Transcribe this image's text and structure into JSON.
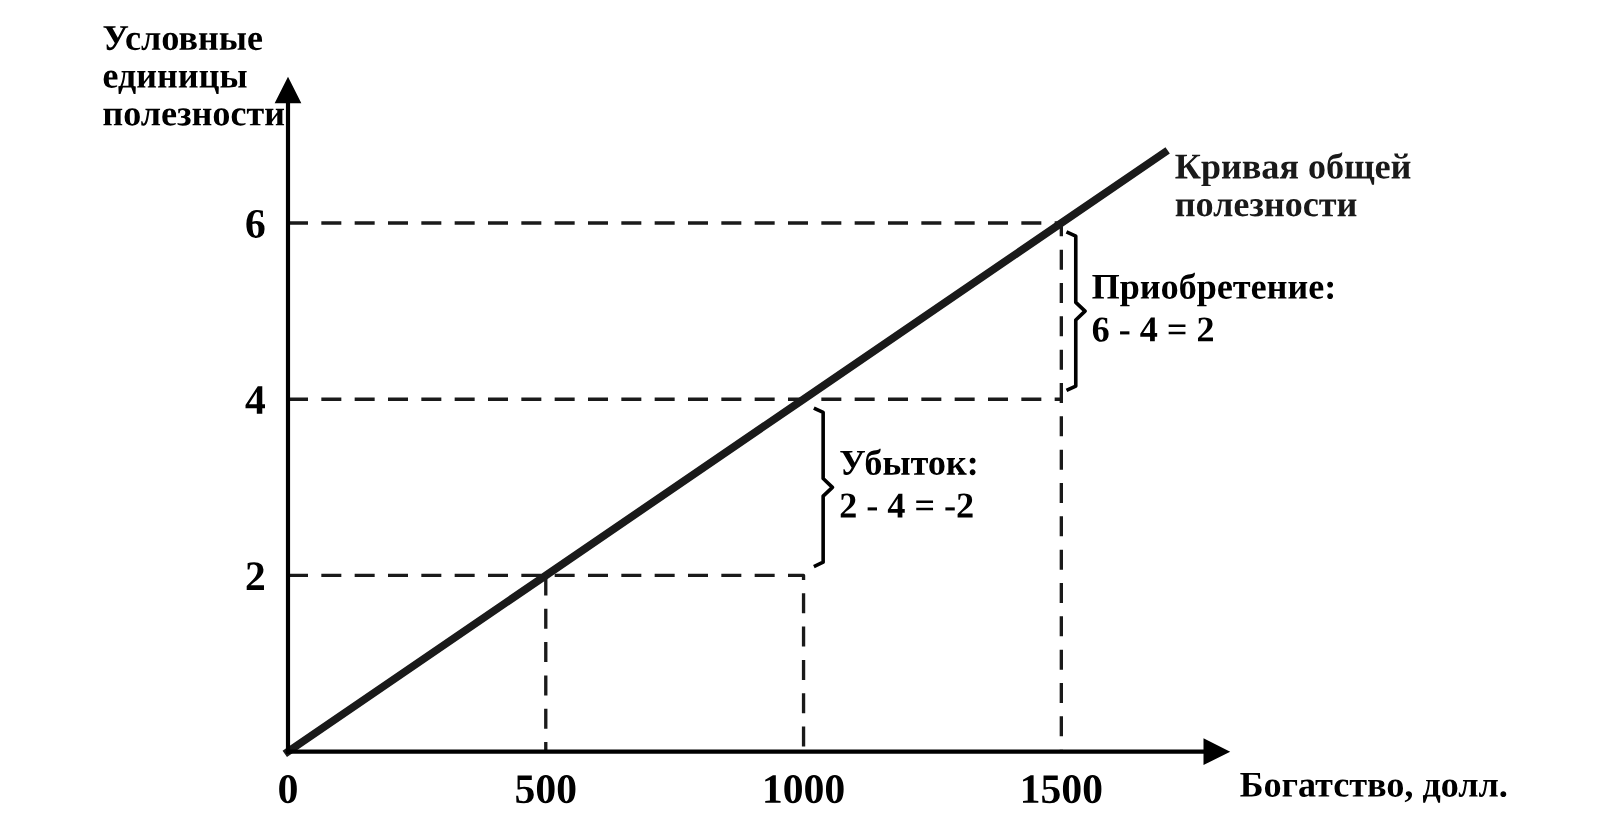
{
  "chart_data": {
    "type": "line",
    "xlabel": "Богатство, долл.",
    "ylabel": "Условные\nединицы\nполезности",
    "xlim": [
      0,
      1800
    ],
    "ylim": [
      0,
      7.5
    ],
    "xticks": [
      0,
      500,
      1000,
      1500
    ],
    "yticks": [
      2,
      4,
      6
    ],
    "grid": false,
    "marker": "none",
    "series": [
      {
        "name": "Кривая общей\nполезности",
        "color": "#1a1a1a",
        "x": [
          0,
          500,
          1000,
          1500,
          1700
        ],
        "values": [
          0,
          2,
          4,
          6,
          6.8
        ]
      },
      {
        "color": "#1a1a1a",
        "line_style": "dashed",
        "x": [
          0,
          1000,
          1000
        ],
        "values": [
          2,
          2,
          0
        ]
      },
      {
        "color": "#1a1a1a",
        "line_style": "dashed",
        "x": [
          500,
          500
        ],
        "values": [
          2,
          0
        ]
      },
      {
        "color": "#1a1a1a",
        "line_style": "dashed",
        "x": [
          0,
          1500
        ],
        "values": [
          4,
          4
        ]
      },
      {
        "color": "#1a1a1a",
        "line_style": "dashed",
        "x": [
          0,
          1500,
          1500
        ],
        "values": [
          6,
          6,
          0
        ]
      }
    ],
    "annotations": [
      "Приобретение:\n6 - 4 = 2",
      "Убыток:\n2 - 4 = -2"
    ]
  }
}
